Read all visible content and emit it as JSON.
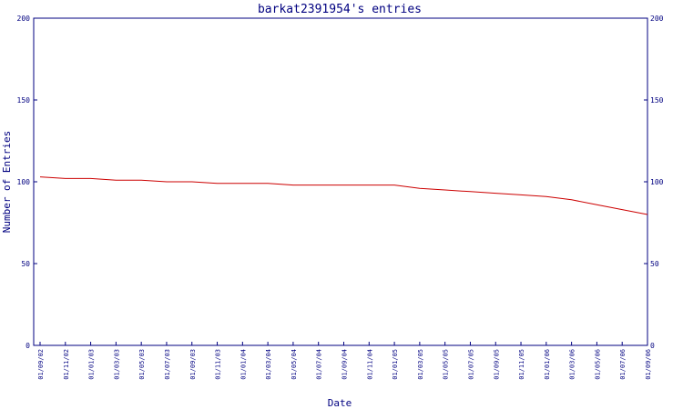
{
  "chart_data": {
    "type": "line",
    "title": "barkat2391954's entries",
    "xlabel": "Date",
    "ylabel": "Number of Entries",
    "ylim": [
      0,
      200
    ],
    "yticks": [
      0,
      50,
      100,
      150,
      200
    ],
    "ytick_labels": [
      "0",
      "50",
      "100",
      "150",
      "200"
    ],
    "xticks": [
      "01/09/02",
      "01/11/02",
      "01/01/03",
      "01/03/03",
      "01/05/03",
      "01/07/03",
      "01/09/03",
      "01/11/03",
      "01/01/04",
      "01/03/04",
      "01/05/04",
      "01/07/04",
      "01/09/04",
      "01/11/04",
      "01/01/05",
      "01/03/05",
      "01/05/05",
      "01/07/05",
      "01/09/05",
      "01/11/05",
      "01/01/06",
      "01/03/06",
      "01/05/06",
      "01/07/06",
      "01/09/06"
    ],
    "grid": false,
    "colors": {
      "axis": "#000080",
      "line": "#cc0000",
      "text": "#000080"
    },
    "series": [
      {
        "x": [
          "01/09/02",
          "01/11/02",
          "01/01/03",
          "01/03/03",
          "01/05/03",
          "01/07/03",
          "01/09/03",
          "01/11/03",
          "01/01/04",
          "01/03/04",
          "01/05/04",
          "01/07/04",
          "01/09/04",
          "01/11/04",
          "01/01/05",
          "01/03/05",
          "01/05/05",
          "01/07/05",
          "01/09/05",
          "01/11/05",
          "01/01/06",
          "01/03/06",
          "01/05/06",
          "01/07/06",
          "01/09/06"
        ],
        "values": [
          103,
          102,
          102,
          101,
          101,
          100,
          100,
          99,
          99,
          99,
          98,
          98,
          98,
          98,
          98,
          96,
          95,
          94,
          93,
          92,
          91,
          89,
          86,
          83,
          80
        ]
      }
    ]
  }
}
